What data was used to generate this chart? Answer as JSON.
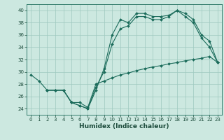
{
  "xlabel": "Humidex (Indice chaleur)",
  "background_color": "#cce8e0",
  "grid_color": "#9dc8be",
  "line_color": "#1a6b5a",
  "xlim": [
    -0.5,
    23.5
  ],
  "ylim": [
    23.0,
    41.0
  ],
  "yticks": [
    24,
    26,
    28,
    30,
    32,
    34,
    36,
    38,
    40
  ],
  "xticks": [
    0,
    1,
    2,
    3,
    4,
    5,
    6,
    7,
    8,
    9,
    10,
    11,
    12,
    13,
    14,
    15,
    16,
    17,
    18,
    19,
    20,
    21,
    22,
    23
  ],
  "line1_x": [
    0,
    1,
    2,
    3,
    4,
    5,
    6,
    7,
    8,
    9,
    10,
    11,
    12,
    13,
    14,
    15,
    16,
    17,
    18,
    19,
    20,
    21,
    22,
    23
  ],
  "line1_y": [
    29.5,
    28.5,
    27.0,
    27.0,
    27.0,
    25.0,
    24.5,
    24.0,
    27.0,
    30.5,
    36.0,
    38.5,
    38.0,
    39.5,
    39.5,
    39.0,
    39.0,
    39.2,
    40.0,
    39.0,
    38.0,
    35.5,
    34.0,
    31.5
  ],
  "line2_x": [
    2,
    3,
    4,
    5,
    6,
    7,
    8,
    9,
    10,
    11,
    12,
    13,
    14,
    15,
    16,
    17,
    18,
    19,
    20,
    21,
    22,
    23
  ],
  "line2_y": [
    27.0,
    27.0,
    27.0,
    25.0,
    24.5,
    24.0,
    27.5,
    30.0,
    34.5,
    37.0,
    37.5,
    39.0,
    39.0,
    38.5,
    38.5,
    39.0,
    40.0,
    39.5,
    38.5,
    36.0,
    35.0,
    31.5
  ],
  "line3_x": [
    2,
    3,
    4,
    5,
    6,
    7,
    8,
    9,
    10,
    11,
    12,
    13,
    14,
    15,
    16,
    17,
    18,
    19,
    20,
    21,
    22,
    23
  ],
  "line3_y": [
    27.0,
    27.0,
    27.0,
    25.0,
    25.0,
    24.2,
    28.0,
    28.5,
    29.0,
    29.5,
    29.8,
    30.2,
    30.5,
    30.8,
    31.0,
    31.3,
    31.5,
    31.8,
    32.0,
    32.2,
    32.5,
    31.5
  ],
  "xlabel_fontsize": 6.5,
  "tick_fontsize": 5.0
}
